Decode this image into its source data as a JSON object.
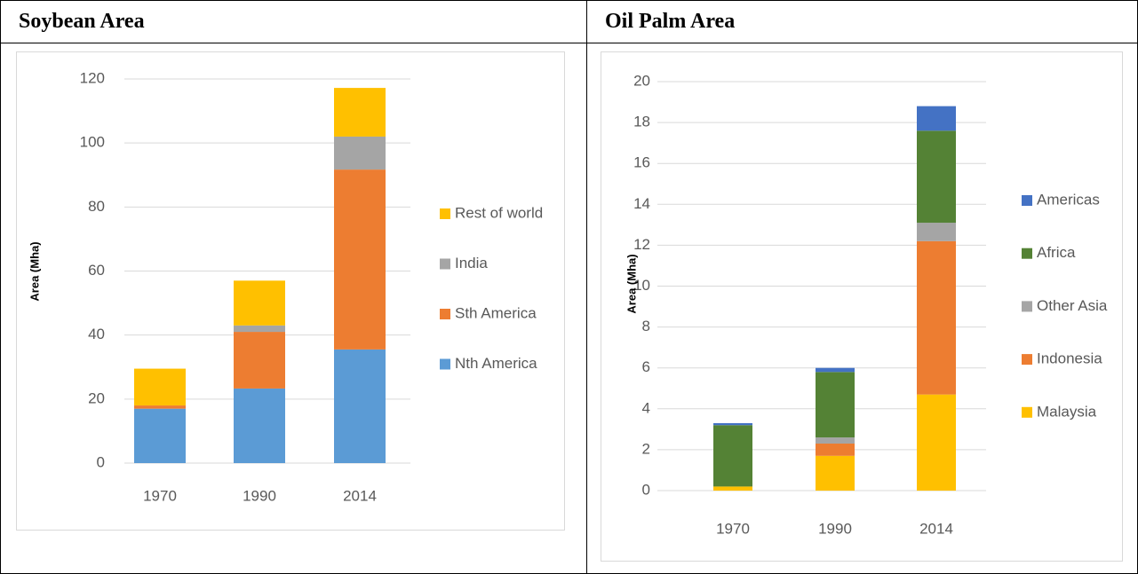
{
  "table": {
    "headers": [
      "Soybean Area",
      "Oil Palm Area"
    ]
  },
  "chart_data": [
    {
      "type": "stacked_bar",
      "y_label": "Area (Mha)",
      "categories": [
        "1970",
        "1990",
        "2014"
      ],
      "series": [
        {
          "name": "Nth America",
          "color": "#5b9bd5",
          "values": [
            17,
            23.3,
            35.5
          ]
        },
        {
          "name": "Sth America",
          "color": "#ed7d31",
          "values": [
            1,
            17.7,
            56.2
          ]
        },
        {
          "name": "India",
          "color": "#a5a5a5",
          "values": [
            0,
            2,
            10.3
          ]
        },
        {
          "name": "Rest of world",
          "color": "#ffc000",
          "values": [
            11.5,
            14,
            15.2
          ]
        }
      ],
      "ylim": [
        0,
        120
      ],
      "yticks": [
        0,
        20,
        40,
        60,
        80,
        100,
        120
      ],
      "grid": true,
      "legend": "right"
    },
    {
      "type": "stacked_bar",
      "y_label": "Area (Mha)",
      "categories": [
        "1970",
        "1990",
        "2014"
      ],
      "series": [
        {
          "name": "Malaysia",
          "color": "#ffc000",
          "values": [
            0.2,
            1.7,
            4.7
          ]
        },
        {
          "name": "Indonesia",
          "color": "#ed7d31",
          "values": [
            0,
            0.6,
            7.5
          ]
        },
        {
          "name": "Other Asia",
          "color": "#a5a5a5",
          "values": [
            0,
            0.3,
            0.9
          ]
        },
        {
          "name": "Africa",
          "color": "#548235",
          "values": [
            3,
            3.2,
            4.5
          ]
        },
        {
          "name": "Americas",
          "color": "#4472c4",
          "values": [
            0.1,
            0.2,
            1.2
          ]
        }
      ],
      "ylim": [
        0,
        20
      ],
      "yticks": [
        0,
        2,
        4,
        6,
        8,
        10,
        12,
        14,
        16,
        18,
        20
      ],
      "grid": true,
      "legend": "right"
    }
  ]
}
